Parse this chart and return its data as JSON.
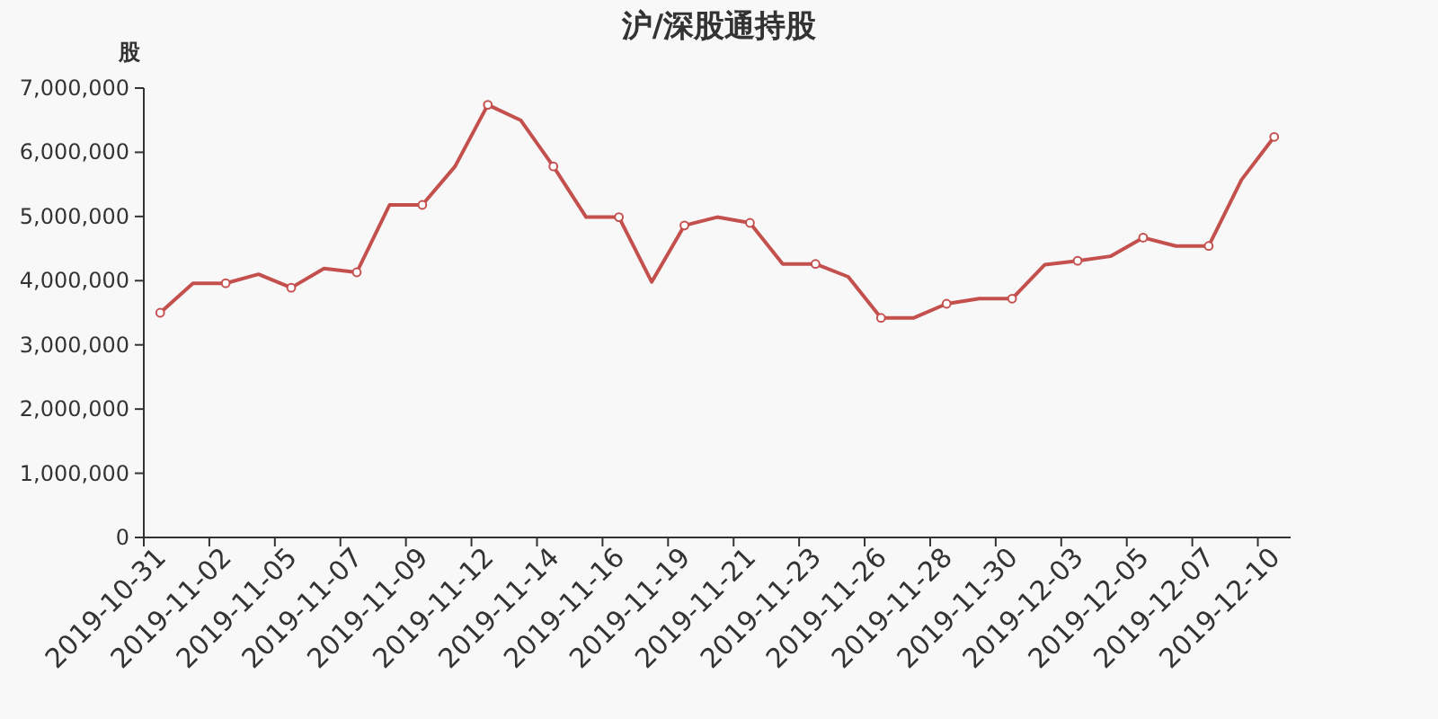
{
  "chart_data": {
    "type": "line",
    "title": "沪/深股通持股",
    "ylabel": "股",
    "categories": [
      "2019-10-31",
      null,
      "2019-11-02",
      null,
      "2019-11-05",
      null,
      "2019-11-07",
      null,
      "2019-11-09",
      null,
      "2019-11-12",
      null,
      "2019-11-14",
      null,
      "2019-11-16",
      null,
      "2019-11-19",
      null,
      "2019-11-21",
      null,
      "2019-11-23",
      null,
      "2019-11-26",
      null,
      "2019-11-28",
      null,
      "2019-11-30",
      null,
      "2019-12-03",
      null,
      "2019-12-05",
      null,
      "2019-12-07",
      null,
      "2019-12-10"
    ],
    "series": [
      {
        "color": "#c4504e",
        "values": [
          3500000,
          3960000,
          3960000,
          4100000,
          3890000,
          4190000,
          4130000,
          5180000,
          5180000,
          5780000,
          6740000,
          6500000,
          5780000,
          4990000,
          4990000,
          3980000,
          4860000,
          4990000,
          4900000,
          4260000,
          4260000,
          4060000,
          3420000,
          3420000,
          3640000,
          3720000,
          3720000,
          4250000,
          4310000,
          4380000,
          4670000,
          4540000,
          4540000,
          5570000,
          6240000
        ]
      }
    ],
    "ylim": [
      0,
      7000000
    ],
    "yticks": [
      0,
      {
        "value": 1000000,
        "label": "1,000,000"
      },
      {
        "value": 2000000,
        "label": "2,000,000"
      },
      {
        "value": 3000000,
        "label": "3,000,000"
      },
      {
        "value": 4000000,
        "label": "4,000,000"
      },
      {
        "value": 5000000,
        "label": "5,000,000"
      },
      {
        "value": 6000000,
        "label": "6,000,000"
      },
      {
        "value": 7000000,
        "label": "7,000,000"
      }
    ],
    "marker": "circle",
    "grid": false
  }
}
